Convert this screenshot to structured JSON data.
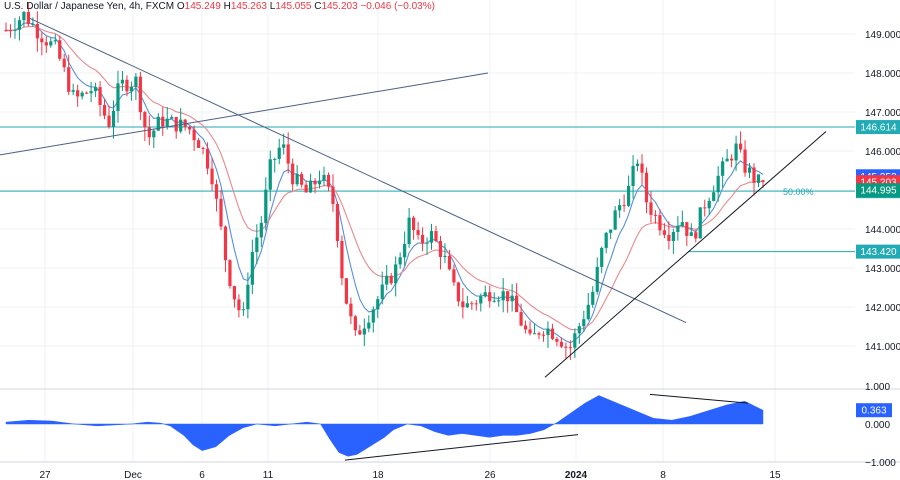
{
  "header": {
    "symbol": "U.S. Dollar / Japanese Yen, 4h, FXCM",
    "open_label": "O",
    "open": "145.249",
    "high_label": "H",
    "high": "145.263",
    "low_label": "L",
    "low": "145.055",
    "close_label": "C",
    "close": "145.203",
    "change": "−0.046 (−0.03%)"
  },
  "colors": {
    "up": "#089981",
    "down": "#f23645",
    "ma_fast": "#5b8fd9",
    "ma_slow": "#e8898f",
    "trendline": "#4a5f85",
    "support": "#131722",
    "level": "#22aab5",
    "oscillator": "#2962ff",
    "grid": "#eef0f3",
    "axis_text": "#131722"
  },
  "chart_data": [
    {
      "type": "candlestick",
      "x_ticks": [
        "27",
        "Dec",
        "6",
        "11",
        "18",
        "26",
        "2024",
        "8",
        "15"
      ],
      "y_ticks": [
        "141.000",
        "142.000",
        "143.000",
        "144.000",
        "145.000",
        "146.000",
        "147.000",
        "148.000",
        "149.000"
      ],
      "ylim": [
        140.0,
        149.5
      ],
      "levels": [
        {
          "price": 146.614,
          "label": "146.614",
          "style": "line"
        },
        {
          "price": 144.97,
          "label": "144.970",
          "style": "line",
          "fib_label": "50.00%"
        },
        {
          "price": 143.42,
          "label": "143.420",
          "style": "short"
        }
      ],
      "price_tags": [
        {
          "price": 145.352,
          "label": "145.352",
          "color": "#2962ff"
        },
        {
          "price": 145.203,
          "label": "145.203",
          "color": "#f23645"
        },
        {
          "price": 144.995,
          "label": "144.995",
          "color": "#089981"
        }
      ],
      "close_path": [
        [
          0,
          149.1
        ],
        [
          8,
          149.5
        ],
        [
          15,
          149.0
        ],
        [
          22,
          148.6
        ],
        [
          30,
          147.3
        ],
        [
          38,
          147.6
        ],
        [
          45,
          146.7
        ],
        [
          50,
          147.7
        ],
        [
          57,
          147.8
        ],
        [
          62,
          146.3
        ],
        [
          68,
          146.8
        ],
        [
          74,
          146.7
        ],
        [
          80,
          146.6
        ],
        [
          85,
          146.2
        ],
        [
          90,
          145.5
        ],
        [
          97,
          143.0
        ],
        [
          101,
          142.1
        ],
        [
          104,
          141.7
        ],
        [
          107,
          143.2
        ],
        [
          112,
          144.2
        ],
        [
          116,
          145.6
        ],
        [
          121,
          146.2
        ],
        [
          126,
          145.3
        ],
        [
          132,
          144.9
        ],
        [
          138,
          145.4
        ],
        [
          144,
          144.6
        ],
        [
          148,
          142.5
        ],
        [
          153,
          141.2
        ],
        [
          157,
          141.6
        ],
        [
          161,
          142.0
        ],
        [
          166,
          142.5
        ],
        [
          171,
          143.0
        ],
        [
          177,
          144.2
        ],
        [
          181,
          143.6
        ],
        [
          186,
          143.9
        ],
        [
          192,
          143.3
        ],
        [
          196,
          142.5
        ],
        [
          201,
          142.0
        ],
        [
          207,
          142.2
        ],
        [
          213,
          142.4
        ],
        [
          220,
          142.3
        ],
        [
          226,
          141.6
        ],
        [
          230,
          141.1
        ],
        [
          235,
          141.5
        ],
        [
          239,
          141.4
        ],
        [
          243,
          141.2
        ],
        [
          247,
          140.9
        ],
        [
          252,
          141.6
        ],
        [
          257,
          142.3
        ],
        [
          262,
          143.6
        ],
        [
          268,
          144.5
        ],
        [
          273,
          145.0
        ],
        [
          277,
          145.8
        ],
        [
          281,
          144.7
        ],
        [
          286,
          144.2
        ],
        [
          291,
          143.9
        ],
        [
          296,
          144.3
        ],
        [
          301,
          143.7
        ],
        [
          306,
          144.6
        ],
        [
          311,
          145.2
        ],
        [
          316,
          145.7
        ],
        [
          320,
          146.1
        ],
        [
          324,
          145.6
        ],
        [
          328,
          145.3
        ],
        [
          332,
          145.1
        ]
      ],
      "candle_count": 170
    },
    {
      "type": "area",
      "y_ticks": [
        "1.000",
        "0.000",
        "−1.000"
      ],
      "ylim": [
        -1.2,
        1.2
      ],
      "last_value": "0.363",
      "x": [
        0,
        10,
        20,
        30,
        40,
        55,
        62,
        68,
        72,
        78,
        82,
        86,
        92,
        98,
        104,
        110,
        118,
        125,
        132,
        138,
        142,
        146,
        150,
        154,
        158,
        162,
        166,
        170,
        176,
        182,
        188,
        194,
        200,
        206,
        212,
        218,
        224,
        230,
        236,
        242,
        248,
        254,
        260,
        268,
        276,
        284,
        292,
        300,
        308,
        316,
        324,
        332
      ],
      "values": [
        0.05,
        0.1,
        0.08,
        0.0,
        -0.05,
        0.0,
        0.05,
        0.02,
        -0.05,
        -0.3,
        -0.55,
        -0.7,
        -0.6,
        -0.3,
        -0.1,
        0.0,
        -0.05,
        0.0,
        0.05,
        0.0,
        -0.4,
        -0.75,
        -0.85,
        -0.8,
        -0.65,
        -0.5,
        -0.35,
        -0.15,
        0.0,
        -0.05,
        -0.2,
        -0.3,
        -0.25,
        -0.3,
        -0.35,
        -0.3,
        -0.3,
        -0.25,
        -0.15,
        0.05,
        0.3,
        0.55,
        0.75,
        0.55,
        0.35,
        0.15,
        0.1,
        0.2,
        0.35,
        0.5,
        0.6,
        0.363
      ]
    }
  ]
}
